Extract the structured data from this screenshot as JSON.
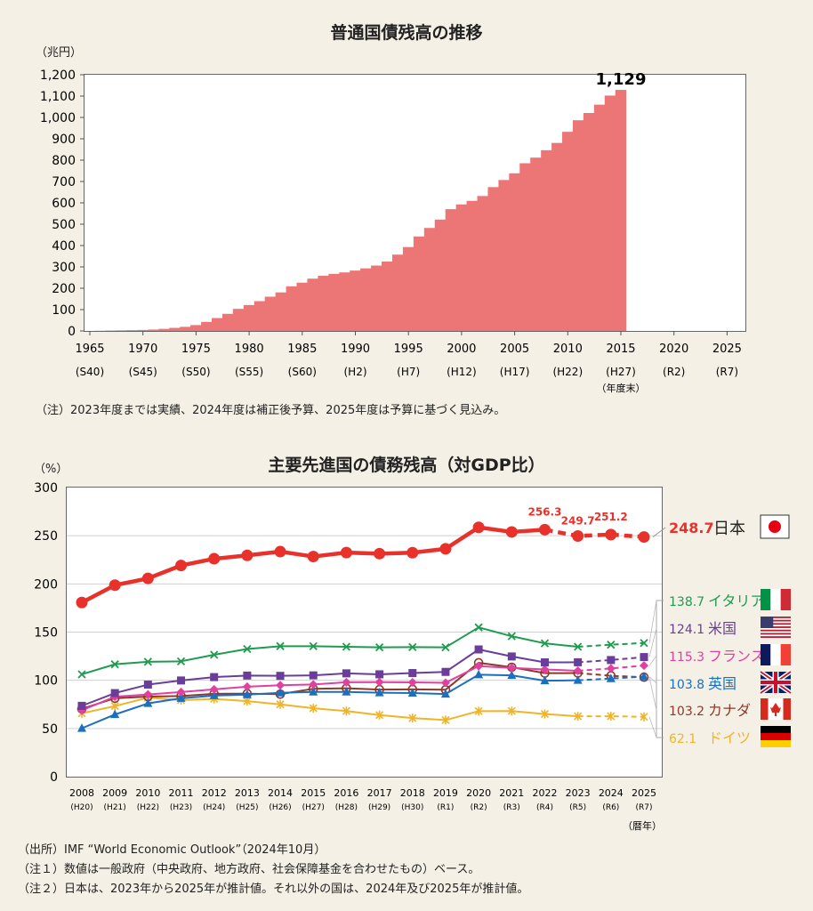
{
  "chart_data": [
    {
      "type": "bar",
      "title": "普通国債残高の推移",
      "ylabel": "（兆円）",
      "ylim": [
        0,
        1200
      ],
      "yticks": [
        "0",
        "100",
        "200",
        "300",
        "400",
        "500",
        "600",
        "700",
        "800",
        "900",
        "1,000",
        "1,100",
        "1,200"
      ],
      "year_ticks": [
        "1965",
        "1970",
        "1975",
        "1980",
        "1985",
        "1990",
        "1995",
        "2000",
        "2005",
        "2010",
        "2015",
        "2020",
        "2025"
      ],
      "era_ticks": [
        "(S40)",
        "(S45)",
        "(S50)",
        "(S55)",
        "(S60)",
        "(H2)",
        "(H7)",
        "(H12)",
        "(H17)",
        "(H22)",
        "(H27)",
        "(R2)",
        "(R7)"
      ],
      "xunit": "（年度末）",
      "start_year": 1965,
      "values": [
        0.2,
        0.9,
        1.9,
        2.8,
        3.7,
        4.6,
        6.5,
        9.7,
        14.4,
        19.3,
        27.5,
        42.3,
        60.4,
        80.1,
        103.4,
        121.4,
        139.5,
        160.5,
        180.5,
        208.9,
        226.1,
        244.9,
        258.6,
        267.3,
        274.2,
        282.8,
        293.1,
        306.2,
        325.3,
        357.4,
        392.9,
        442.3,
        482.4,
        521.6,
        570.4,
        592.6,
        609.3,
        632.0,
        673.7,
        707.0,
        738.3,
        785.4,
        811.8,
        846.5,
        880.6,
        932.7,
        986.8,
        1020.9,
        1059.8,
        1102.3,
        1129.0
      ],
      "highlight_year": 2025,
      "value_label": "1,129",
      "bar_color": "#ec7676",
      "highlight_color": "#e60012",
      "note": "（注）2023年度までは実績、2024年度は補正後予算、2025年度は予算に基づく見込み。"
    },
    {
      "type": "line",
      "title": "主要先進国の債務残高（対GDP比）",
      "ylabel": "（%）",
      "ylim": [
        0,
        300
      ],
      "yticks": [
        "0",
        "50",
        "100",
        "150",
        "200",
        "250",
        "300"
      ],
      "x": [
        "2008",
        "2009",
        "2010",
        "2011",
        "2012",
        "2013",
        "2014",
        "2015",
        "2016",
        "2017",
        "2018",
        "2019",
        "2020",
        "2021",
        "2022",
        "2023",
        "2024",
        "2025"
      ],
      "x_era": [
        "(H20)",
        "(H21)",
        "(H22)",
        "(H23)",
        "(H24)",
        "(H25)",
        "(H26)",
        "(H27)",
        "(H28)",
        "(H29)",
        "(H30)",
        "(R1)",
        "(R2)",
        "(R3)",
        "(R4)",
        "(R5)",
        "(R6)",
        "(R7)"
      ],
      "xunit": "（暦年）",
      "series": [
        {
          "name": "日本",
          "label": "248.7",
          "color": "#e8312a",
          "marker": "circle",
          "width": 4.5,
          "proj_from": 14,
          "values": [
            180.7,
            198.7,
            205.7,
            219.1,
            226.1,
            229.6,
            233.5,
            228.4,
            232.5,
            231.4,
            232.4,
            236.4,
            258.7,
            253.9,
            256.3,
            249.7,
            251.2,
            248.7
          ]
        },
        {
          "name": "イタリア",
          "label": "138.7",
          "color": "#1f9b4f",
          "marker": "x",
          "width": 2,
          "proj_from": 15,
          "values": [
            106.2,
            116.6,
            119.2,
            119.7,
            126.5,
            132.5,
            135.4,
            135.3,
            134.8,
            134.2,
            134.4,
            134.2,
            154.9,
            145.7,
            138.3,
            134.8,
            136.9,
            138.7
          ]
        },
        {
          "name": "米国",
          "label": "124.1",
          "color": "#6a3d9a",
          "marker": "square",
          "width": 2,
          "proj_from": 15,
          "values": [
            73.5,
            86.7,
            95.5,
            99.8,
            103.3,
            104.9,
            104.6,
            105.1,
            107.2,
            106.2,
            107.5,
            108.7,
            132.0,
            124.7,
            118.6,
            118.7,
            121.0,
            124.1
          ]
        },
        {
          "name": "フランス",
          "label": "115.3",
          "color": "#e040a0",
          "marker": "diamond",
          "width": 2,
          "proj_from": 15,
          "values": [
            68.8,
            83.0,
            85.3,
            87.8,
            90.6,
            93.4,
            94.9,
            95.6,
            98.0,
            98.1,
            97.8,
            97.4,
            114.7,
            112.9,
            111.2,
            109.9,
            112.3,
            115.3
          ]
        },
        {
          "name": "英国",
          "label": "103.8",
          "color": "#1b6fc0",
          "marker": "triangle",
          "width": 2,
          "proj_from": 15,
          "values": [
            50.2,
            64.5,
            76.0,
            81.3,
            84.1,
            85.2,
            87.0,
            87.9,
            87.9,
            87.1,
            86.8,
            85.7,
            105.8,
            105.1,
            99.6,
            100.0,
            101.8,
            103.8
          ]
        },
        {
          "name": "カナダ",
          "label": "103.2",
          "color": "#8b3a2a",
          "marker": "ocircle",
          "width": 2,
          "proj_from": 15,
          "values": [
            70.3,
            81.4,
            83.1,
            83.7,
            86.0,
            86.1,
            85.6,
            91.2,
            91.7,
            90.4,
            90.6,
            90.2,
            118.2,
            113.5,
            107.4,
            107.5,
            104.7,
            103.2
          ]
        },
        {
          "name": "ドイツ",
          "label": "62.1",
          "color": "#f0b428",
          "marker": "star",
          "width": 2,
          "proj_from": 15,
          "values": [
            65.7,
            73.2,
            82.0,
            79.4,
            80.7,
            78.3,
            75.0,
            71.0,
            68.1,
            63.9,
            60.8,
            58.7,
            68.0,
            68.1,
            65.0,
            62.7,
            62.7,
            62.1
          ]
        }
      ],
      "annotations": [
        "256.3",
        "249.7",
        "251.2"
      ],
      "notes": [
        "（出所）IMF “World Economic Outlook”（2024年10月）",
        "（注１）数値は一般政府（中央政府、地方政府、社会保障基金を合わせたもの）ベース。",
        "（注２）日本は、2023年から2025年が推計値。それ以外の国は、2024年及び2025年が推計値。"
      ]
    }
  ]
}
